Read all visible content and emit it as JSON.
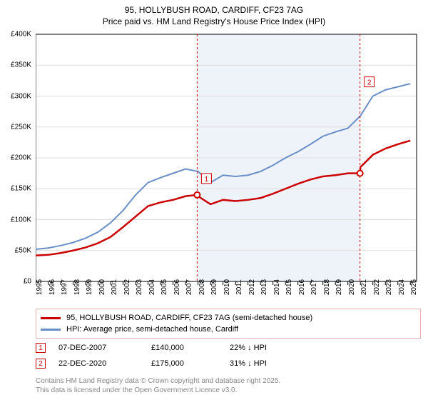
{
  "title_line1": "95, HOLLYBUSH ROAD, CARDIFF, CF23 7AG",
  "title_line2": "Price paid vs. HM Land Registry's House Price Index (HPI)",
  "chart": {
    "type": "line",
    "background_color": "#ffffff",
    "shaded_region_color": "#eef3fa",
    "shaded_region_x_start": 2007.93,
    "shaded_region_x_end": 2020.97,
    "grid_color": "#dddddd",
    "xlim": [
      1995,
      2025.5
    ],
    "ylim": [
      0,
      400000
    ],
    "ytick_step": 50000,
    "ytick_labels": [
      "£0",
      "£50K",
      "£100K",
      "£150K",
      "£200K",
      "£250K",
      "£300K",
      "£350K",
      "£400K"
    ],
    "xtick_step": 1,
    "xtick_labels": [
      "1995",
      "1996",
      "1997",
      "1998",
      "1999",
      "2000",
      "2001",
      "2002",
      "2003",
      "2004",
      "2005",
      "2006",
      "2007",
      "2008",
      "2009",
      "2010",
      "2011",
      "2012",
      "2013",
      "2014",
      "2015",
      "2016",
      "2017",
      "2018",
      "2019",
      "2020",
      "2021",
      "2022",
      "2023",
      "2024",
      "2025"
    ],
    "series": [
      {
        "name": "95, HOLLYBUSH ROAD, CARDIFF, CF23 7AG (semi-detached house)",
        "color": "#cc0000",
        "line_width": 2.5,
        "x": [
          1995,
          1996,
          1997,
          1998,
          1999,
          2000,
          2001,
          2002,
          2003,
          2004,
          2005,
          2006,
          2007,
          2007.93,
          2008,
          2009,
          2010,
          2011,
          2012,
          2013,
          2014,
          2015,
          2016,
          2017,
          2018,
          2019,
          2020,
          2020.97,
          2021,
          2022,
          2023,
          2024,
          2025
        ],
        "y": [
          42000,
          43000,
          46000,
          50000,
          55000,
          62000,
          72000,
          88000,
          105000,
          122000,
          128000,
          132000,
          138000,
          140000,
          138000,
          125000,
          132000,
          130000,
          132000,
          135000,
          142000,
          150000,
          158000,
          165000,
          170000,
          172000,
          175000,
          175000,
          185000,
          205000,
          215000,
          222000,
          228000
        ]
      },
      {
        "name": "HPI: Average price, semi-detached house, Cardiff",
        "color": "#6a8fc7",
        "line_width": 2,
        "x": [
          1995,
          1996,
          1997,
          1998,
          1999,
          2000,
          2001,
          2002,
          2003,
          2004,
          2005,
          2006,
          2007,
          2008,
          2009,
          2010,
          2011,
          2012,
          2013,
          2014,
          2015,
          2016,
          2017,
          2018,
          2019,
          2020,
          2021,
          2022,
          2023,
          2024,
          2025
        ],
        "y": [
          52000,
          54000,
          58000,
          63000,
          70000,
          80000,
          95000,
          115000,
          140000,
          160000,
          168000,
          175000,
          182000,
          178000,
          160000,
          172000,
          170000,
          172000,
          178000,
          188000,
          200000,
          210000,
          222000,
          235000,
          242000,
          248000,
          268000,
          300000,
          310000,
          315000,
          320000
        ]
      }
    ],
    "sale_markers": [
      {
        "label": "1",
        "x": 2007.93,
        "y": 140000,
        "box_y_offset": -30
      },
      {
        "label": "2",
        "x": 2020.97,
        "y": 175000,
        "box_y_offset": -135
      }
    ],
    "marker_box_border": "#cc0000",
    "marker_box_text_color": "#cc0000",
    "marker_point_stroke": "#cc0000",
    "marker_point_fill": "#ffffff",
    "marker_dash_color": "#cc0000"
  },
  "legend": {
    "items": [
      {
        "color": "#cc0000",
        "label": "95, HOLLYBUSH ROAD, CARDIFF, CF23 7AG (semi-detached house)"
      },
      {
        "color": "#6a8fc7",
        "label": "HPI: Average price, semi-detached house, Cardiff"
      }
    ]
  },
  "sales_table": {
    "rows": [
      {
        "marker": "1",
        "date": "07-DEC-2007",
        "price": "£140,000",
        "diff": "22% ↓ HPI"
      },
      {
        "marker": "2",
        "date": "22-DEC-2020",
        "price": "£175,000",
        "diff": "31% ↓ HPI"
      }
    ]
  },
  "attribution_line1": "Contains HM Land Registry data © Crown copyright and database right 2025.",
  "attribution_line2": "This data is licensed under the Open Government Licence v3.0."
}
